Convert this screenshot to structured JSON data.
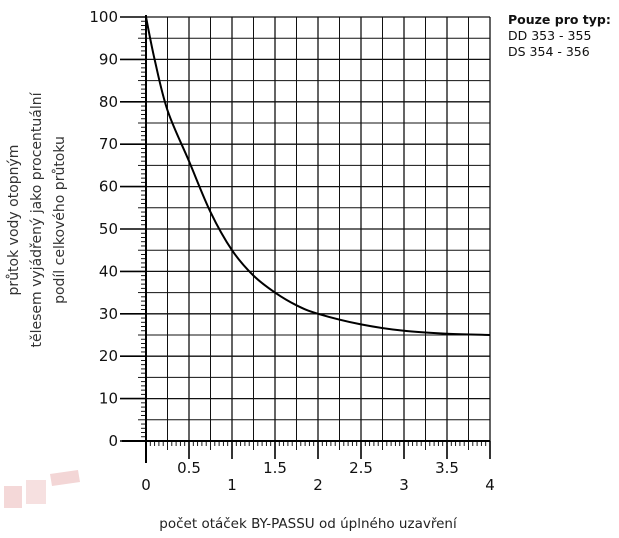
{
  "chart_data": {
    "type": "line",
    "ylabel_lines": [
      "průtok vody otopným",
      "tělesem vyjádřený jako procentuální",
      "podíl celkového průtoku"
    ],
    "xlabel": "počet otáček BY-PASSU od úplného uzavření",
    "xlim": [
      0,
      4
    ],
    "ylim": [
      0,
      100
    ],
    "x_ticks": [
      {
        "value": 0,
        "label": "0"
      },
      {
        "value": 0.5,
        "label": "0.5"
      },
      {
        "value": 1,
        "label": "1"
      },
      {
        "value": 1.5,
        "label": "1.5"
      },
      {
        "value": 2,
        "label": "2"
      },
      {
        "value": 2.5,
        "label": "2.5"
      },
      {
        "value": 3,
        "label": "3"
      },
      {
        "value": 3.5,
        "label": "3.5"
      },
      {
        "value": 4,
        "label": "4"
      }
    ],
    "y_ticks": [
      0,
      10,
      20,
      30,
      40,
      50,
      60,
      70,
      80,
      90,
      100
    ],
    "grid": true,
    "series": [
      {
        "x": [
          0,
          0.1,
          0.25,
          0.5,
          0.75,
          1.0,
          1.25,
          1.5,
          1.75,
          2.0,
          2.5,
          3.0,
          3.5,
          4.0
        ],
        "y": [
          100,
          90,
          78,
          66,
          54,
          45,
          39,
          35,
          32,
          30,
          27.5,
          26,
          25.3,
          25
        ]
      }
    ]
  },
  "note": {
    "title": "Pouze pro typ:",
    "lines": [
      "DD 353 - 355",
      "DS 354 - 356"
    ]
  },
  "colors": {
    "grid": "#111111",
    "curve": "#000000",
    "watermark": "#f3d6d6"
  }
}
